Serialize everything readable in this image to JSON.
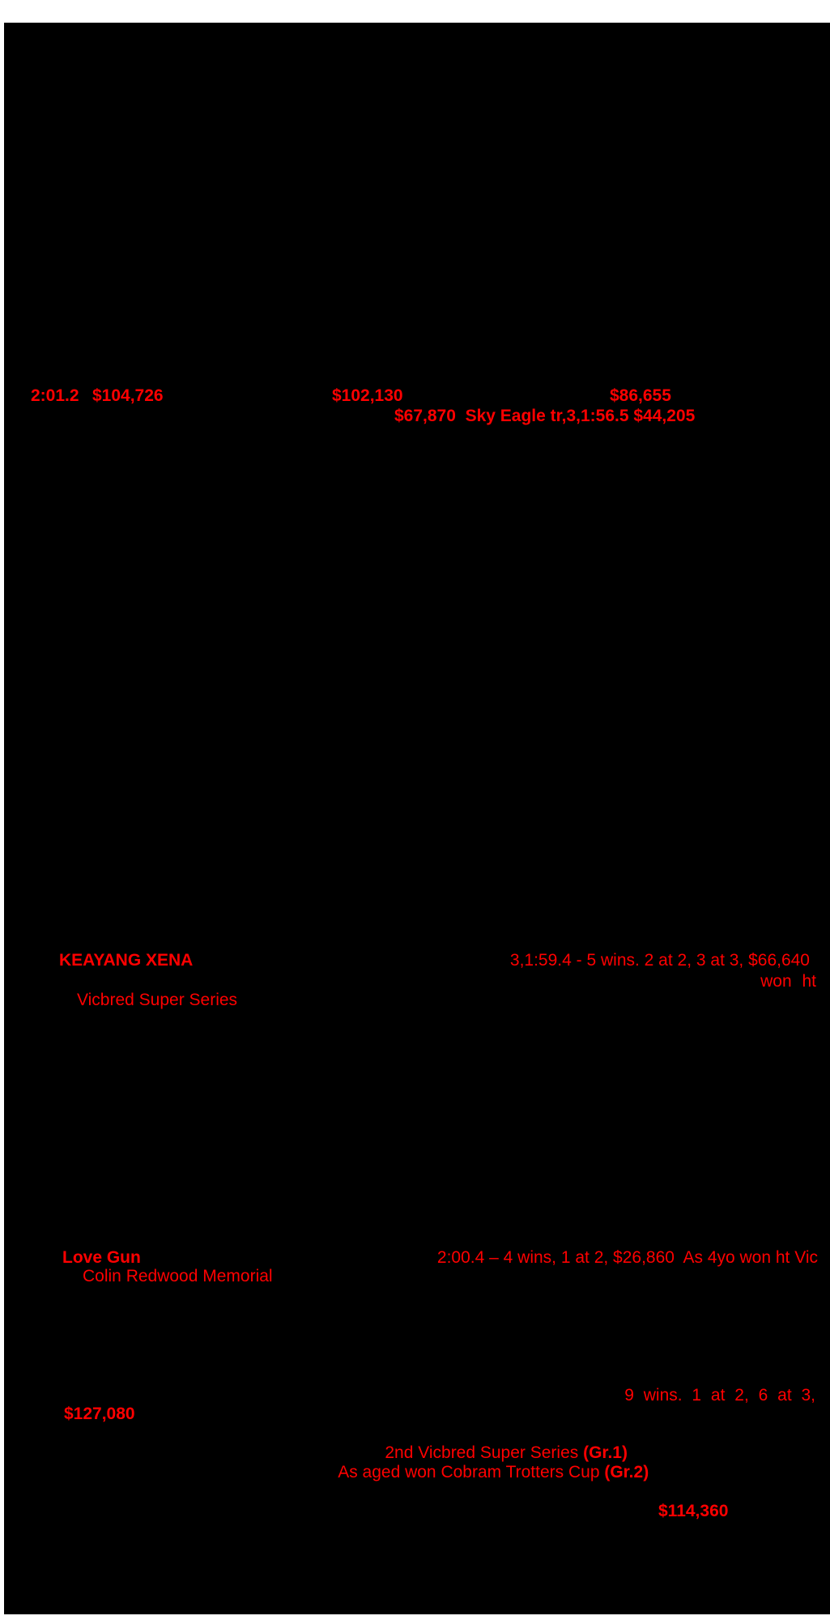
{
  "page_bg": "#000000",
  "text_color": "#ff0000",
  "margin_color": "#ffffff",
  "sire_line": {
    "time": "2:01.2",
    "earnings_a": "$104,726",
    "earnings_b": "$102,130",
    "earnings_c": "$86,655",
    "detail": "$67,870  Sky Eagle tr,3,1:56.5 $44,205"
  },
  "keayang_xena": {
    "name": "KEAYANG XENA",
    "record": "3,1:59.4 - 5 wins. 2 at 2, 3 at 3, $66,640",
    "record_continued": "won ht",
    "race": "Vicbred Super Series"
  },
  "love_gun": {
    "name": "Love Gun",
    "record": "2:00.4 – 4 wins, 1 at 2, $26,860  As 4yo won ht Vic",
    "race": "Colin Redwood Memorial"
  },
  "progeny": {
    "wins_line": "9 wins. 1 at 2, 6 at 3,",
    "earnings": "$127,080",
    "placing": "2nd Vicbred Super Series ",
    "placing_grade": "(Gr.1)",
    "win_line": "As aged won Cobram Trotters Cup ",
    "win_grade": "(Gr.2)",
    "earnings2": "$114,360"
  }
}
